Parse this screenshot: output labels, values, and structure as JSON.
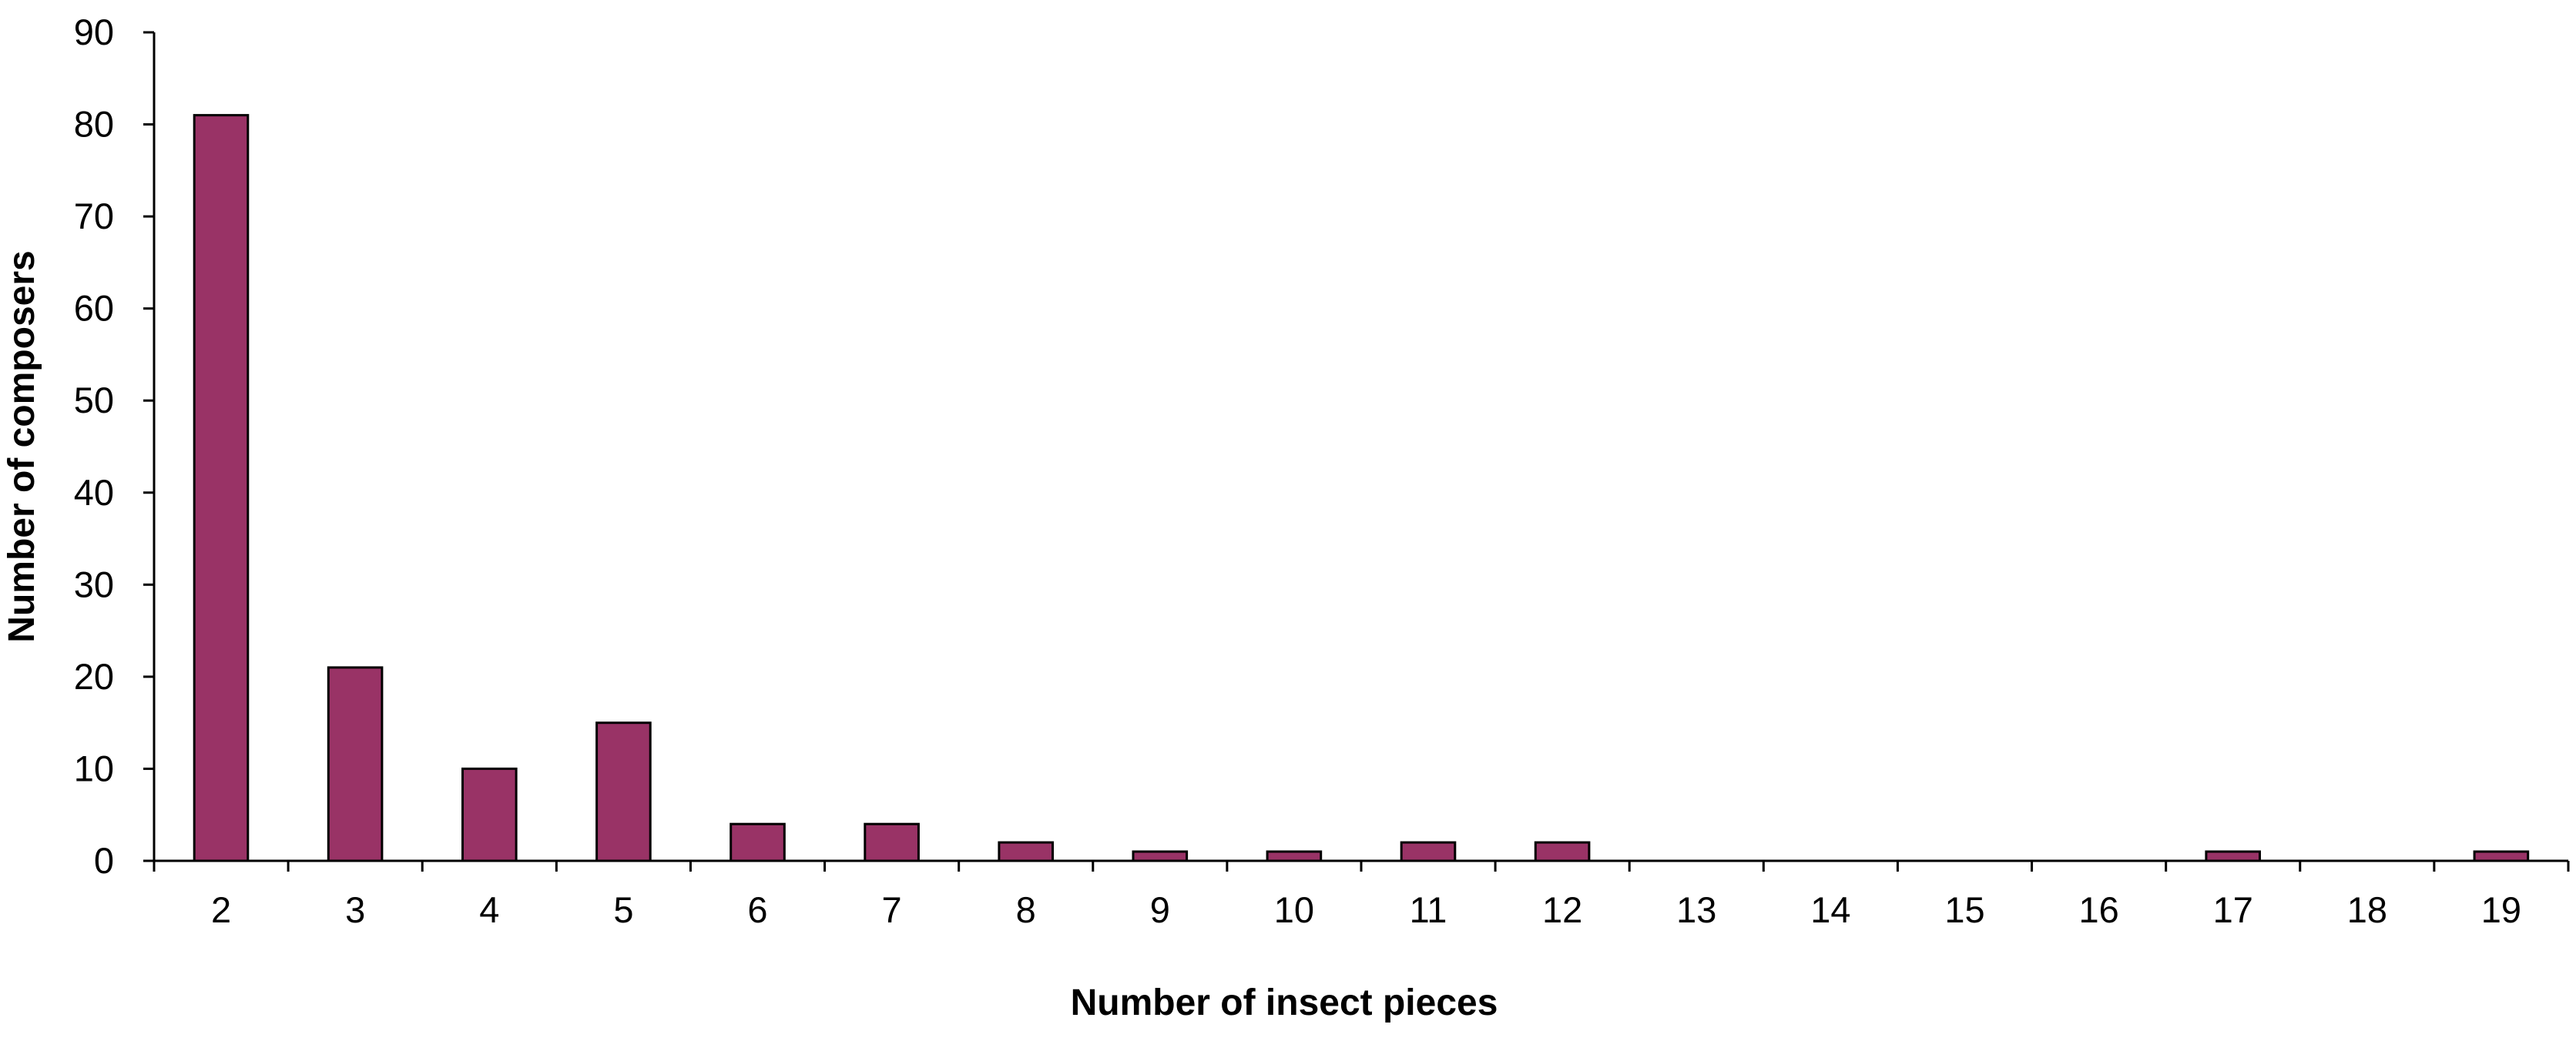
{
  "chart_data": {
    "type": "bar",
    "categories": [
      "2",
      "3",
      "4",
      "5",
      "6",
      "7",
      "8",
      "9",
      "10",
      "11",
      "12",
      "13",
      "14",
      "15",
      "16",
      "17",
      "18",
      "19"
    ],
    "values": [
      81,
      21,
      10,
      15,
      4,
      4,
      2,
      1,
      1,
      2,
      2,
      0,
      0,
      0,
      0,
      1,
      0,
      1
    ],
    "title": "",
    "xlabel": "Number of insect pieces",
    "ylabel": "Number of composers",
    "ylim": [
      0,
      90
    ],
    "yticks": [
      0,
      10,
      20,
      30,
      40,
      50,
      60,
      70,
      80,
      90
    ],
    "grid": false,
    "legend": "none",
    "colors": {
      "bar_fill": "#993366",
      "bar_stroke": "#000000",
      "axis": "#000000",
      "background": "#ffffff"
    }
  }
}
